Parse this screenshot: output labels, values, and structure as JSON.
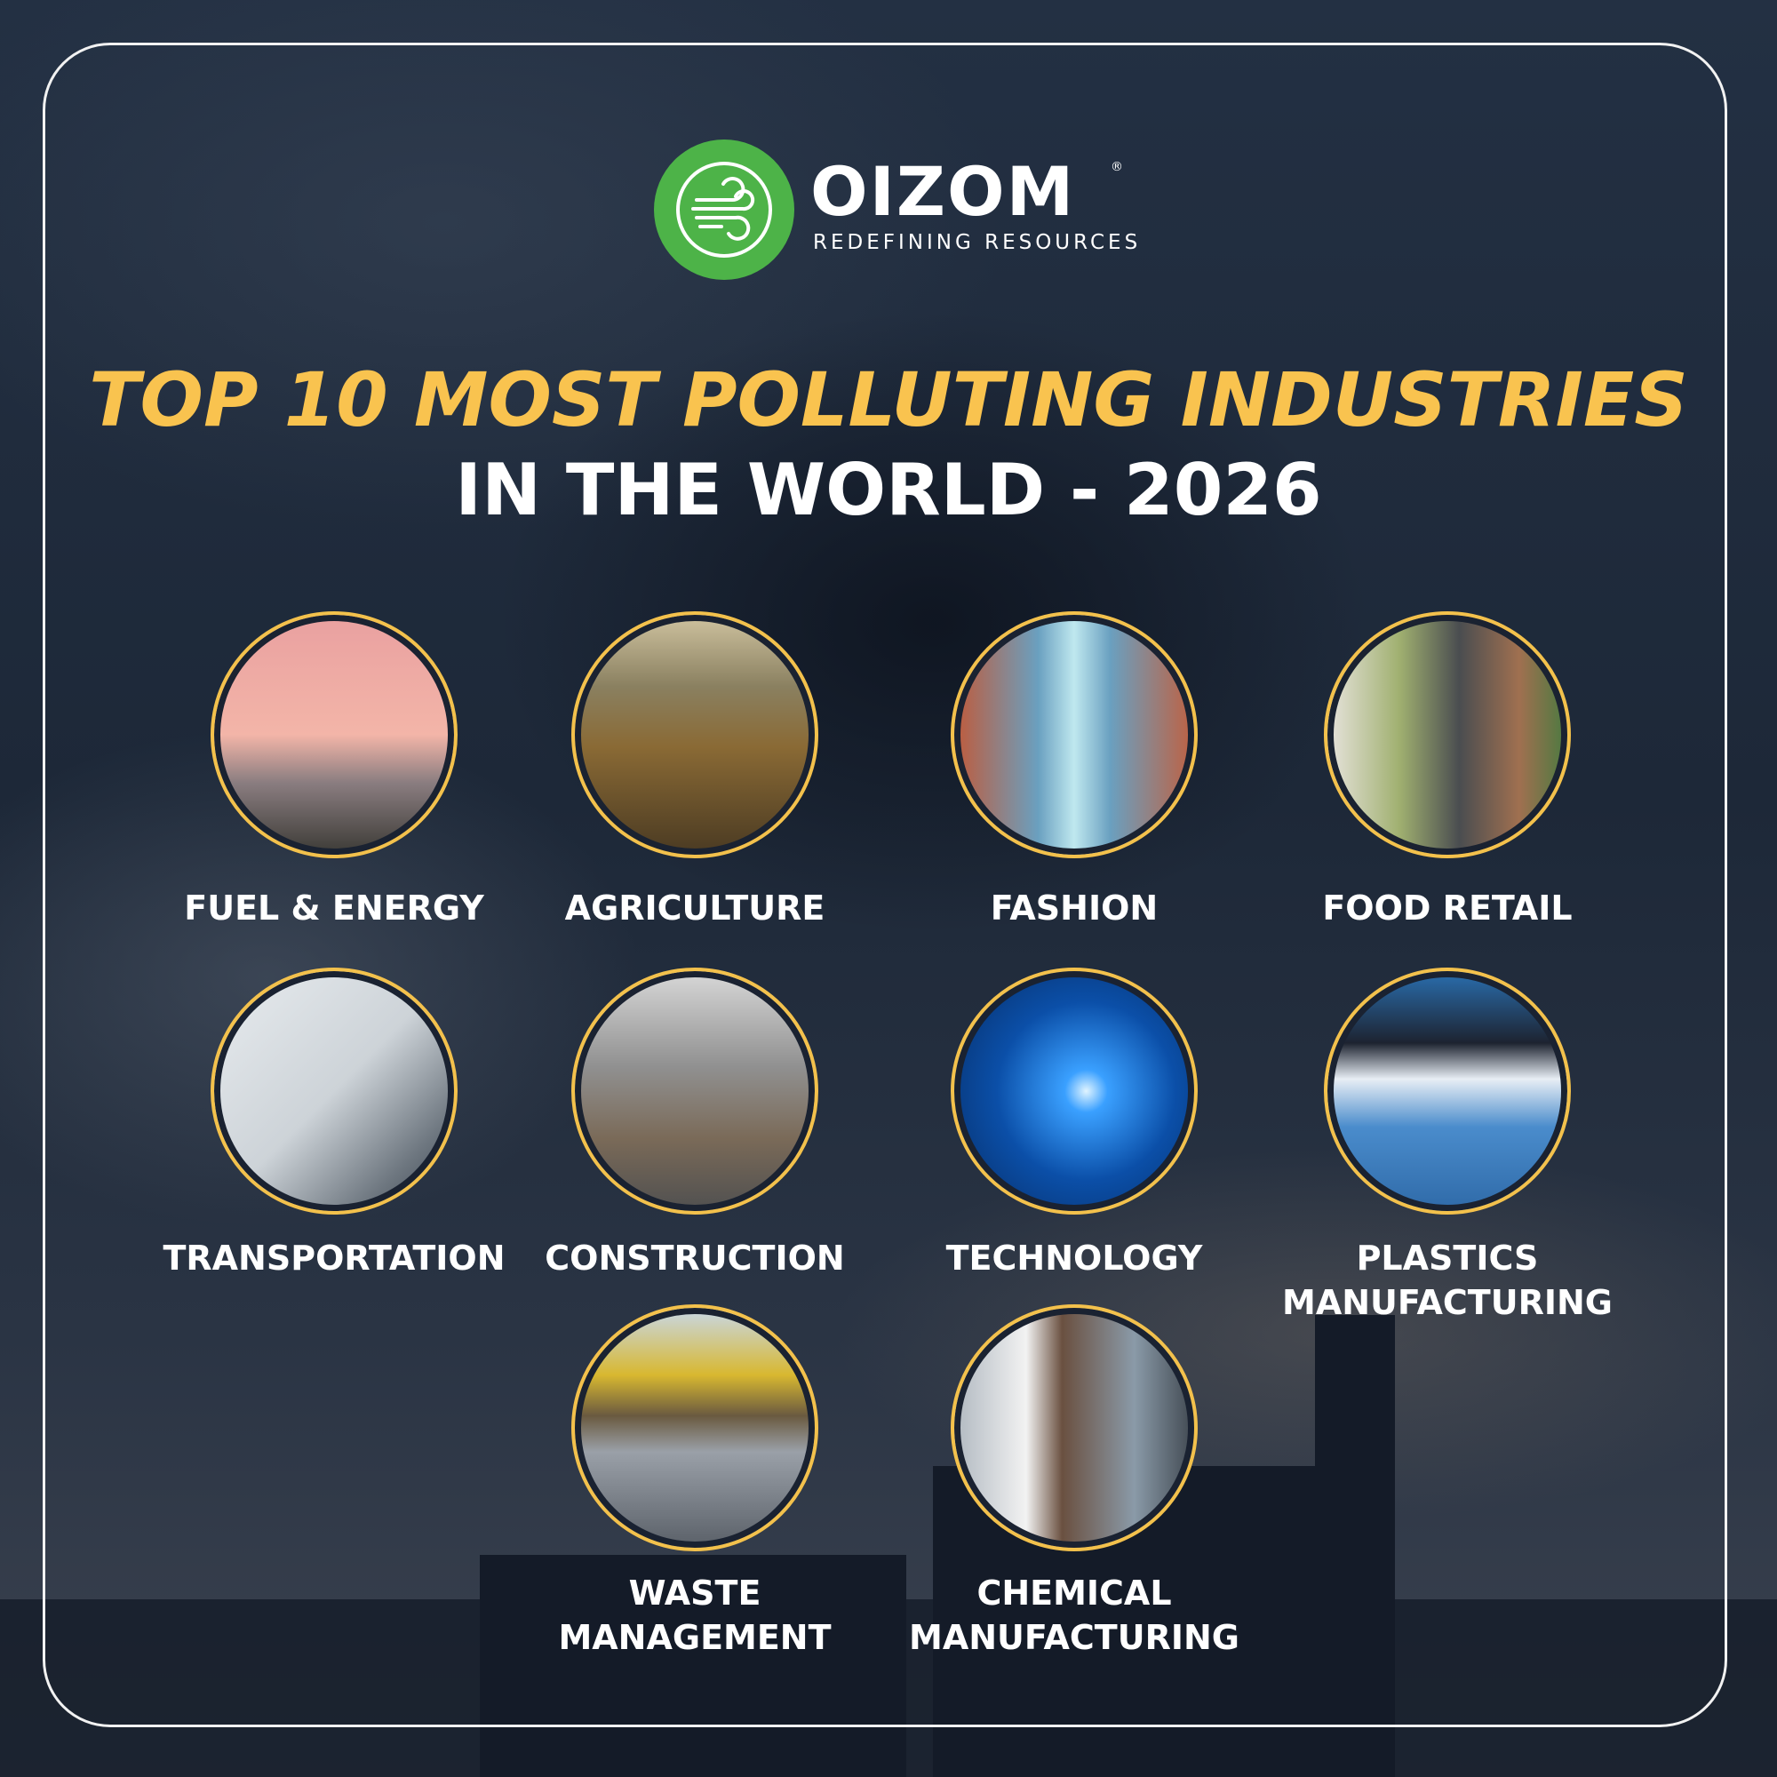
{
  "logo": {
    "brand": "OIZOM",
    "registered": "®",
    "tagline": "REDEFINING RESOURCES",
    "icon": "wind-icon",
    "brand_color": "#4db348"
  },
  "title": {
    "line1": "TOP 10 MOST POLLUTING INDUSTRIES",
    "line2": "IN THE WORLD - 2026",
    "accent_color": "#f9c34f"
  },
  "industries": [
    {
      "label": "FUEL & ENERGY",
      "image": "smokestack-photo"
    },
    {
      "label": "AGRICULTURE",
      "image": "crop-field-photo"
    },
    {
      "label": "FASHION",
      "image": "clothing-store-photo"
    },
    {
      "label": "FOOD RETAIL",
      "image": "supermarket-photo"
    },
    {
      "label": "TRANSPORTATION",
      "image": "car-exhaust-photo"
    },
    {
      "label": "CONSTRUCTION",
      "image": "construction-workers-photo"
    },
    {
      "label": "TECHNOLOGY",
      "image": "robot-hand-photo"
    },
    {
      "label": "PLASTICS MANUFACTURING",
      "image": "plastic-pellets-photo"
    },
    {
      "label": "WASTE MANAGEMENT",
      "image": "landfill-bulldozer-photo"
    },
    {
      "label": "CHEMICAL MANUFACTURING",
      "image": "lab-scientist-photo"
    }
  ]
}
